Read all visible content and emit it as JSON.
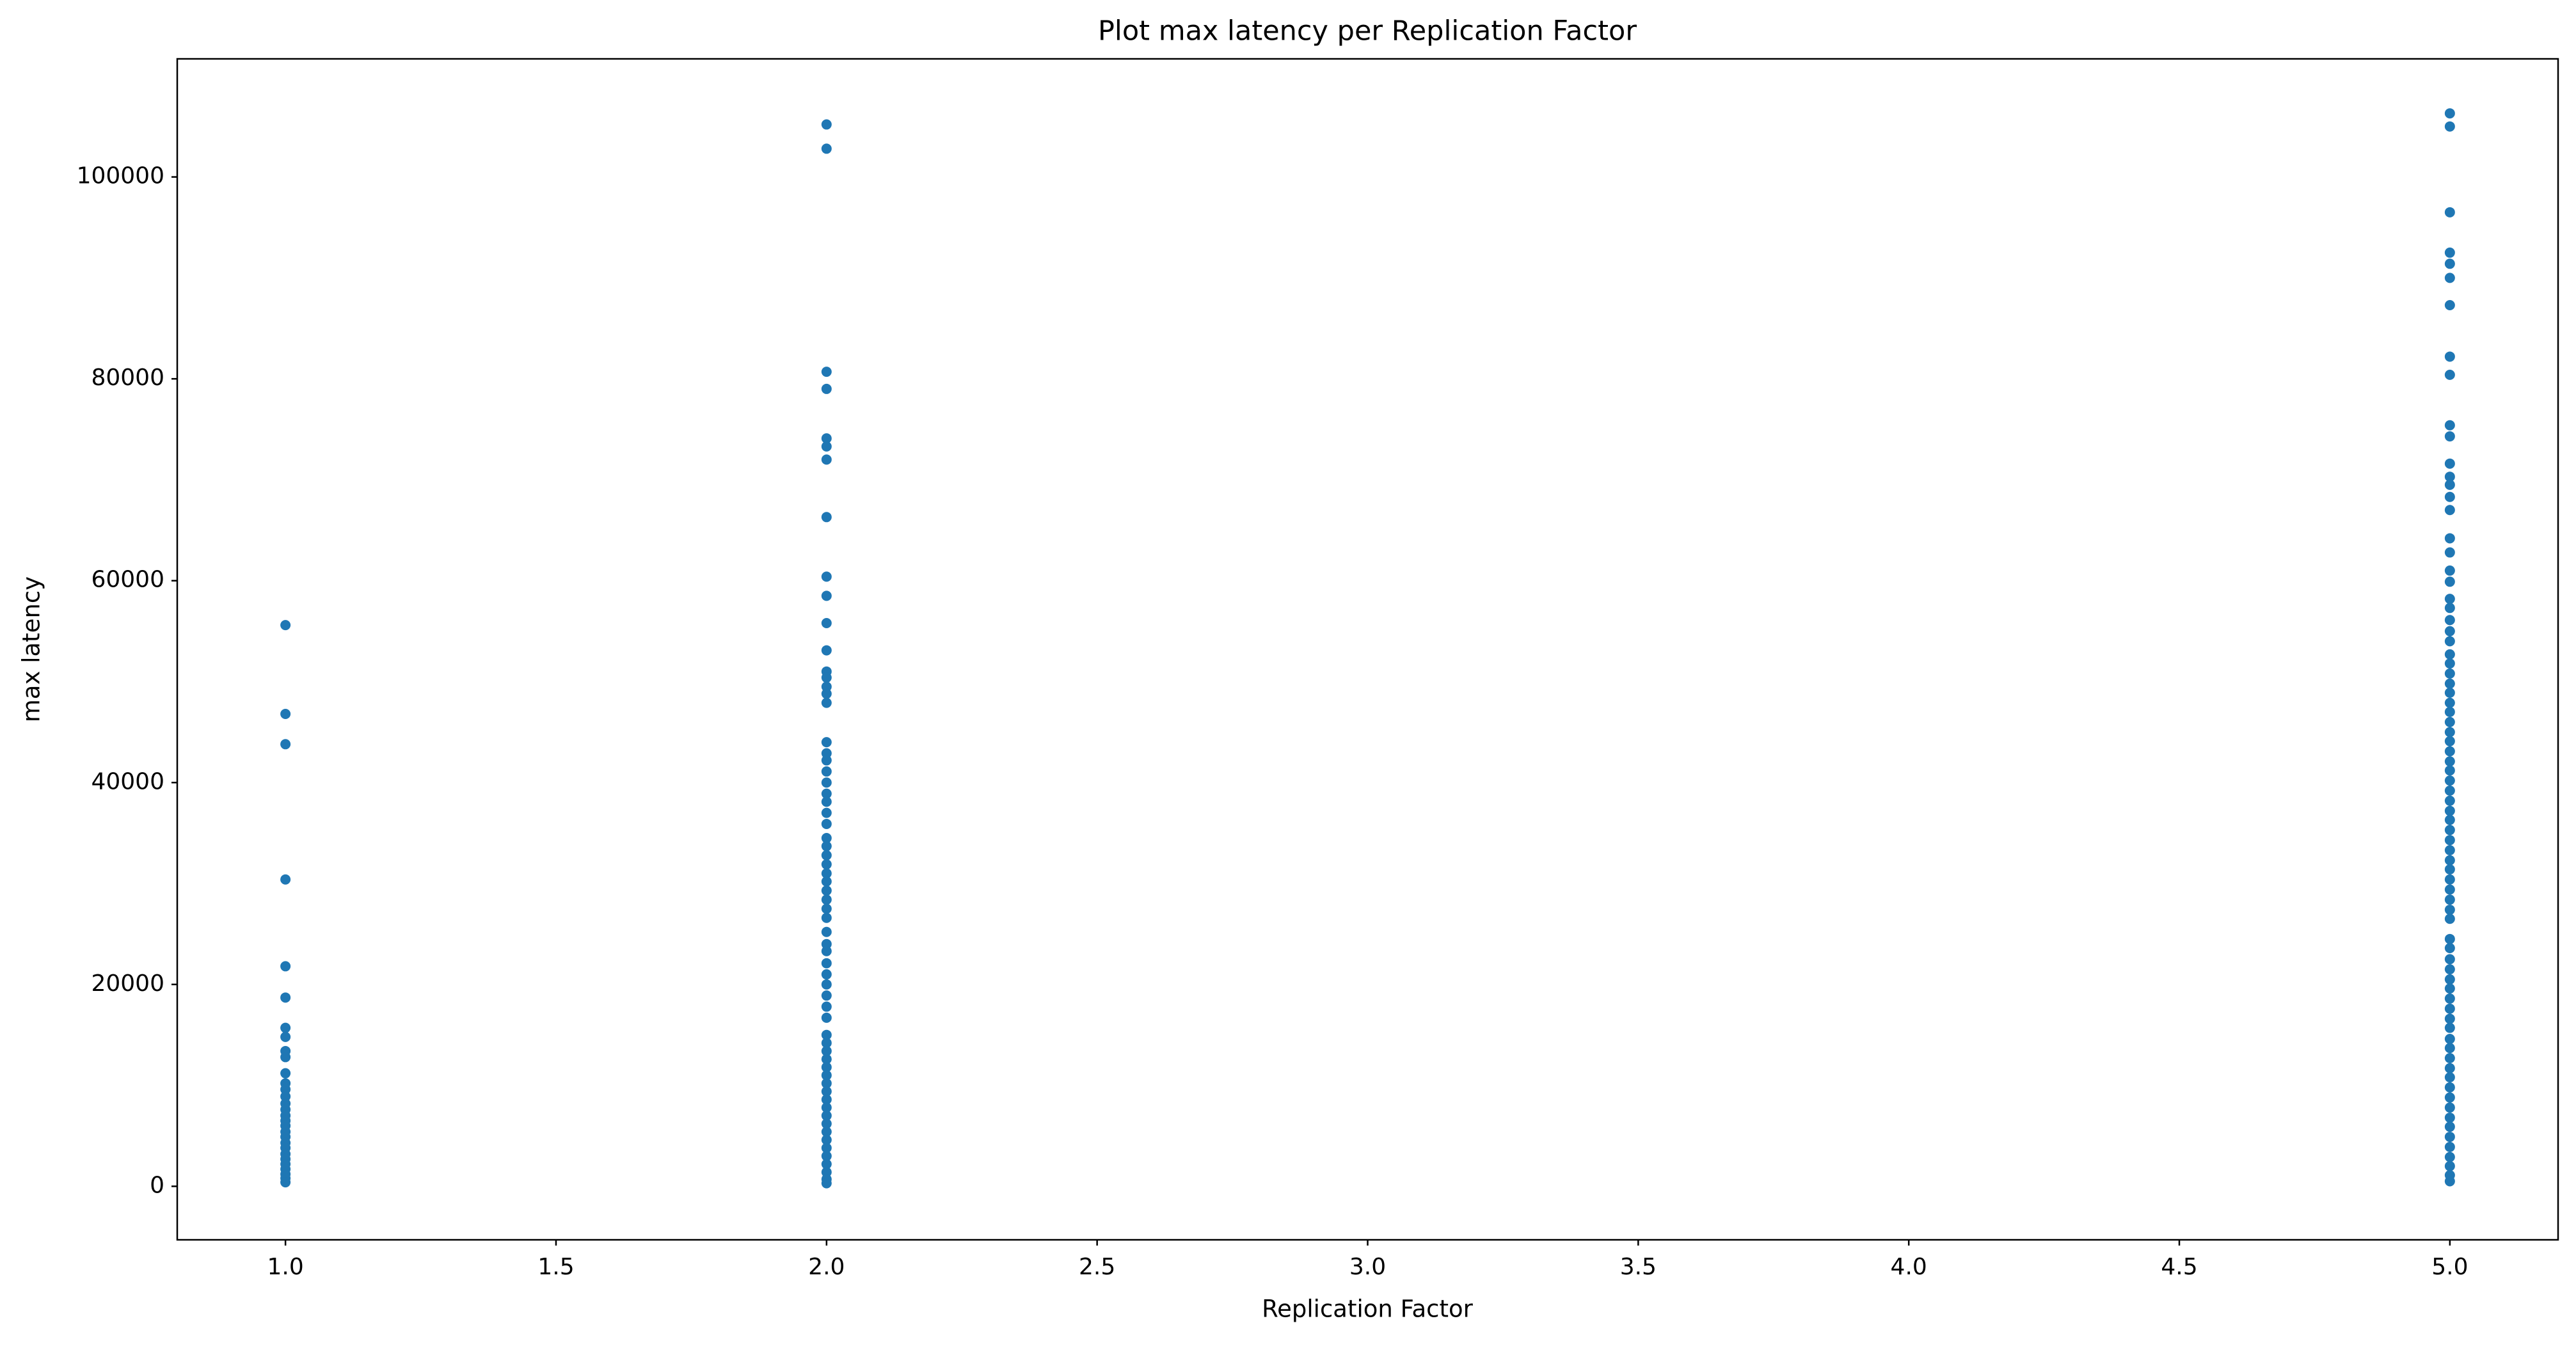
{
  "chart_data": {
    "type": "scatter",
    "title": "Plot max latency per Replication Factor",
    "x_label": "Replication Factor",
    "y_label": "max latency",
    "color": "#1f77b4",
    "xlim": [
      0.8,
      5.2
    ],
    "ylim": [
      -5300,
      111700
    ],
    "xticks": [
      {
        "value": 1,
        "label": "1.0"
      },
      {
        "value": 1.5,
        "label": "1.5"
      },
      {
        "value": 2,
        "label": "2.0"
      },
      {
        "value": 2.5,
        "label": "2.5"
      },
      {
        "value": 3,
        "label": "3.0"
      },
      {
        "value": 3.5,
        "label": "3.5"
      },
      {
        "value": 4,
        "label": "4.0"
      },
      {
        "value": 4.5,
        "label": "4.5"
      },
      {
        "value": 5,
        "label": "5.0"
      }
    ],
    "yticks": [
      0,
      20000,
      40000,
      60000,
      80000,
      100000
    ],
    "x": [
      1,
      1,
      1,
      1,
      1,
      1,
      1,
      1,
      1,
      1,
      1,
      1,
      1,
      1,
      1,
      1,
      1,
      1,
      1,
      1,
      1,
      1,
      1,
      1,
      1,
      1,
      1,
      1,
      1,
      1,
      2,
      2,
      2,
      2,
      2,
      2,
      2,
      2,
      2,
      2,
      2,
      2,
      2,
      2,
      2,
      2,
      2,
      2,
      2,
      2,
      2,
      2,
      2,
      2,
      2,
      2,
      2,
      2,
      2,
      2,
      2,
      2,
      2,
      2,
      2,
      2,
      2,
      2,
      2,
      2,
      2,
      2,
      2,
      2,
      2,
      2,
      2,
      2,
      2,
      2,
      2,
      2,
      2,
      2,
      2,
      2,
      2,
      2,
      2,
      2,
      2,
      2,
      2,
      2,
      2,
      5,
      5,
      5,
      5,
      5,
      5,
      5,
      5,
      5,
      5,
      5,
      5,
      5,
      5,
      5,
      5,
      5,
      5,
      5,
      5,
      5,
      5,
      5,
      5,
      5,
      5,
      5,
      5,
      5,
      5,
      5,
      5,
      5,
      5,
      5,
      5,
      5,
      5,
      5,
      5,
      5,
      5,
      5,
      5,
      5,
      5,
      5,
      5,
      5,
      5,
      5,
      5,
      5,
      5,
      5,
      5,
      5,
      5,
      5,
      5,
      5,
      5,
      5,
      5,
      5,
      5,
      5,
      5,
      5,
      5,
      5,
      5,
      5,
      5,
      5,
      5,
      5,
      5,
      5
    ],
    "values": [
      55600,
      46800,
      43800,
      30400,
      21800,
      18700,
      15700,
      14800,
      13400,
      12800,
      11200,
      10200,
      9600,
      8900,
      8200,
      7600,
      7000,
      6500,
      6000,
      5400,
      4900,
      4300,
      3800,
      3200,
      2700,
      2200,
      1700,
      1200,
      800,
      400,
      105200,
      102800,
      80700,
      79000,
      74100,
      73300,
      72000,
      66300,
      60400,
      58500,
      55800,
      53100,
      51000,
      50400,
      49500,
      48800,
      47900,
      44000,
      42900,
      42200,
      41100,
      40000,
      38900,
      38100,
      37000,
      35900,
      34500,
      33700,
      32800,
      31900,
      31000,
      30200,
      29300,
      28400,
      27500,
      26600,
      25200,
      24000,
      23300,
      22100,
      21000,
      20000,
      18900,
      17800,
      16700,
      15000,
      14200,
      13400,
      12600,
      11800,
      11000,
      10200,
      9400,
      8600,
      7800,
      7000,
      6200,
      5400,
      4600,
      3800,
      3000,
      2200,
      1400,
      700,
      300,
      106300,
      105000,
      96500,
      92500,
      91400,
      90000,
      87300,
      82200,
      80400,
      75400,
      74300,
      71600,
      70300,
      69500,
      68300,
      67000,
      64200,
      62800,
      61000,
      59900,
      58200,
      57300,
      56100,
      55000,
      54000,
      52700,
      51800,
      50800,
      49800,
      48900,
      47900,
      47000,
      46000,
      45000,
      44100,
      43100,
      42100,
      41200,
      40200,
      39200,
      38200,
      37200,
      36300,
      35300,
      34300,
      33300,
      32300,
      31400,
      30400,
      29400,
      28400,
      27400,
      26500,
      24500,
      23600,
      22500,
      21500,
      20500,
      19600,
      18600,
      17600,
      16600,
      15700,
      14600,
      13700,
      12700,
      11700,
      10800,
      9800,
      8800,
      7800,
      6800,
      5900,
      4900,
      3900,
      2900,
      2000,
      1100,
      500
    ]
  }
}
